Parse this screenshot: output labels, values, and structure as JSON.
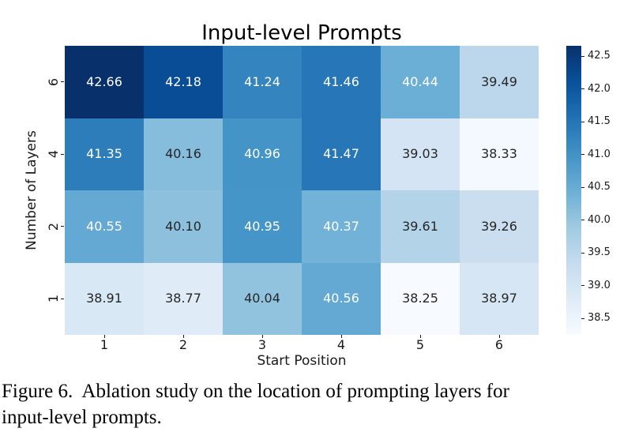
{
  "chart_data": {
    "type": "heatmap",
    "title": "Input-level Prompts",
    "xlabel": "Start Position",
    "ylabel": "Number of Layers",
    "x_categories": [
      "1",
      "2",
      "3",
      "4",
      "5",
      "6"
    ],
    "y_categories": [
      "6",
      "4",
      "2",
      "1"
    ],
    "values": [
      [
        42.66,
        42.18,
        41.24,
        41.46,
        40.44,
        39.49
      ],
      [
        41.35,
        40.16,
        40.96,
        41.47,
        39.03,
        38.33
      ],
      [
        40.55,
        40.1,
        40.95,
        40.37,
        39.61,
        39.26
      ],
      [
        38.91,
        38.77,
        40.04,
        40.56,
        38.25,
        38.97
      ]
    ],
    "value_decimals": 2,
    "vmin": 38.25,
    "vmax": 42.66,
    "colormap": "Blues",
    "colormap_stops": [
      "#f7fbff",
      "#deebf7",
      "#c6dbef",
      "#9ecae1",
      "#6baed6",
      "#4292c6",
      "#2171b5",
      "#08519c",
      "#08306b"
    ],
    "annot_color_dark_cells": "#ffffff",
    "annot_color_light_cells": "#262626",
    "colorbar_ticks": [
      "42.5",
      "42.0",
      "41.5",
      "41.0",
      "40.5",
      "40.0",
      "39.5",
      "39.0",
      "38.5"
    ],
    "legend_position": "right-colorbar",
    "grid": "off"
  },
  "caption": {
    "text": "Figure 6.  Ablation study on the location of prompting layers for\ninput-level prompts."
  }
}
